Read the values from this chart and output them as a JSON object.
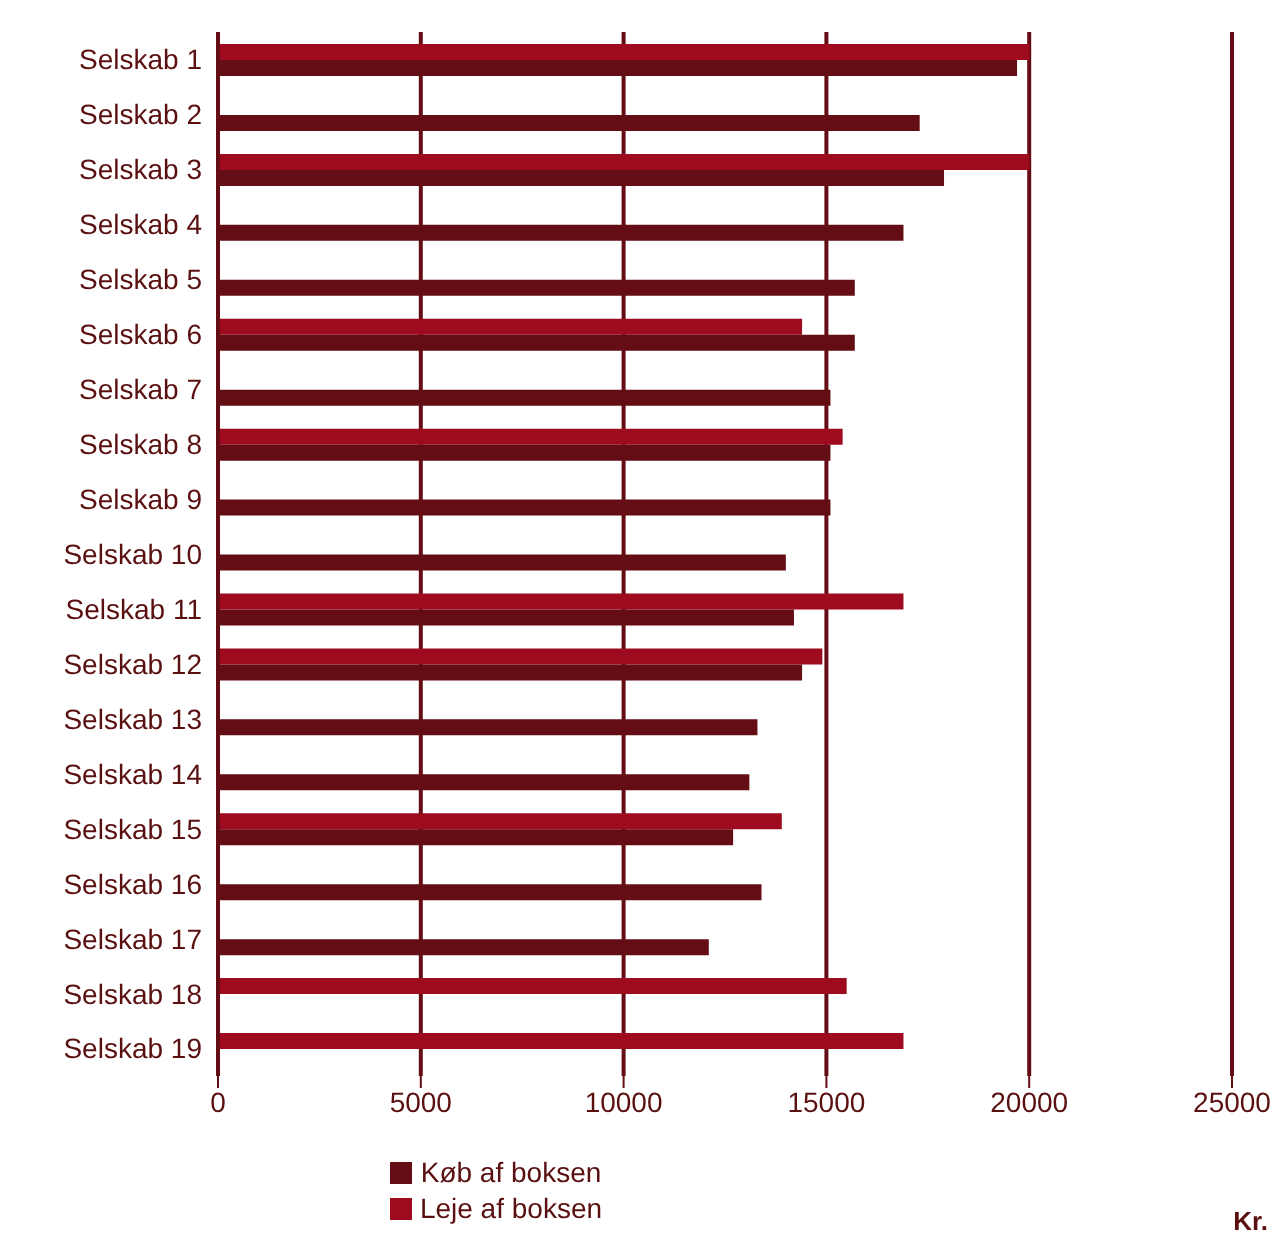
{
  "chart_data": {
    "type": "bar",
    "orientation": "horizontal",
    "xlabel": "Kr.",
    "categories": [
      "Selskab 1",
      "Selskab 2",
      "Selskab 3",
      "Selskab 4",
      "Selskab 5",
      "Selskab 6",
      "Selskab 7",
      "Selskab 8",
      "Selskab 9",
      "Selskab 10",
      "Selskab 11",
      "Selskab 12",
      "Selskab 13",
      "Selskab 14",
      "Selskab 15",
      "Selskab 16",
      "Selskab 17",
      "Selskab 18",
      "Selskab 19"
    ],
    "series": [
      {
        "name": "Leje af boksen",
        "color": "#9e0b1f",
        "values": [
          20000,
          null,
          20000,
          null,
          null,
          14400,
          null,
          15400,
          null,
          null,
          16900,
          14900,
          null,
          null,
          13900,
          null,
          null,
          15500,
          16900
        ]
      },
      {
        "name": "Køb af boksen",
        "color": "#640d14",
        "values": [
          19700,
          17300,
          17900,
          16900,
          15700,
          15700,
          15100,
          15100,
          15100,
          14000,
          14200,
          14400,
          13300,
          13100,
          12700,
          13400,
          12100,
          null,
          null
        ]
      }
    ],
    "xlim": [
      0,
      25000
    ],
    "xticks": [
      0,
      5000,
      10000,
      15000,
      20000,
      25000
    ],
    "grid": "x",
    "legend": "bottom"
  }
}
